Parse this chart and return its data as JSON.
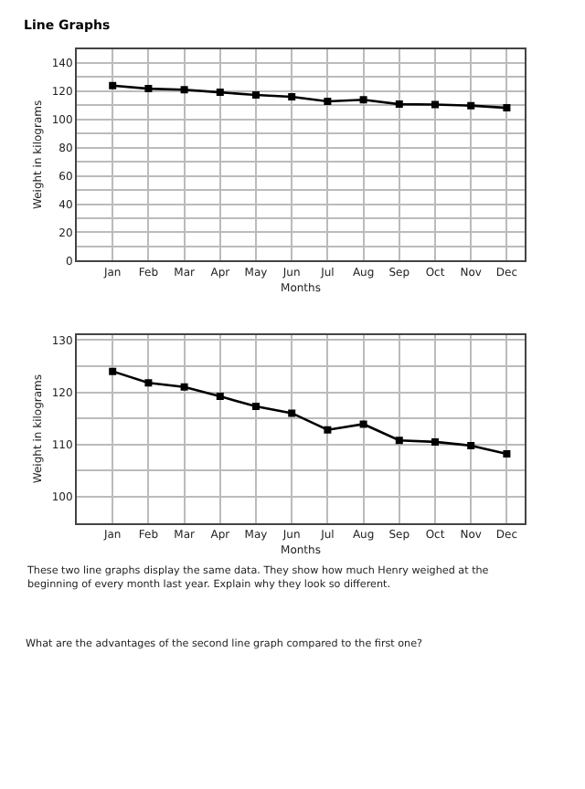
{
  "chart_data": [
    {
      "type": "line",
      "title": "Line Graphs",
      "xlabel": "Months",
      "ylabel": "Weight in kilograms",
      "categories": [
        "Jan",
        "Feb",
        "Mar",
        "Apr",
        "May",
        "Jun",
        "Jul",
        "Aug",
        "Sep",
        "Oct",
        "Nov",
        "Dec"
      ],
      "series": [
        {
          "color": "#000000",
          "values": [
            124,
            121.8,
            121,
            119.2,
            117.3,
            116,
            112.8,
            113.9,
            110.8,
            110.5,
            109.8,
            108.2
          ]
        }
      ],
      "ylim": [
        0,
        150
      ],
      "yticks": [
        0,
        {
          "value": 10,
          "label": null
        },
        20,
        {
          "value": 30,
          "label": null
        },
        40,
        {
          "value": 50,
          "label": null
        },
        60,
        {
          "value": 70,
          "label": null
        },
        80,
        {
          "value": 90,
          "label": null
        },
        100,
        {
          "value": 110,
          "label": null
        },
        120,
        {
          "value": 130,
          "label": null
        },
        140,
        {
          "value": 150,
          "label": null
        }
      ],
      "grid": true,
      "marker": "square",
      "line_style": "solid"
    },
    {
      "type": "line",
      "xlabel": "Months",
      "ylabel": "Weight in kilograms",
      "categories": [
        "Jan",
        "Feb",
        "Mar",
        "Apr",
        "May",
        "Jun",
        "Jul",
        "Aug",
        "Sep",
        "Oct",
        "Nov",
        "Dec"
      ],
      "series": [
        {
          "color": "#000000",
          "values": [
            124,
            121.8,
            121,
            119.2,
            117.3,
            116,
            112.8,
            113.9,
            110.8,
            110.5,
            109.8,
            108.2
          ]
        }
      ],
      "ylim": [
        95,
        131
      ],
      "yticks": [
        100,
        {
          "value": 105,
          "label": null
        },
        110,
        {
          "value": 115,
          "label": null
        },
        120,
        {
          "value": 125,
          "label": null
        },
        130
      ],
      "grid": true,
      "marker": "square",
      "line_style": "solid",
      "annotations": [
        "These two line graphs display the same data. They show how much Henry weighed at the beginning of every month last year. Explain why they look so different.",
        "What are the advantages of the second line graph compared to the first one?"
      ]
    }
  ]
}
